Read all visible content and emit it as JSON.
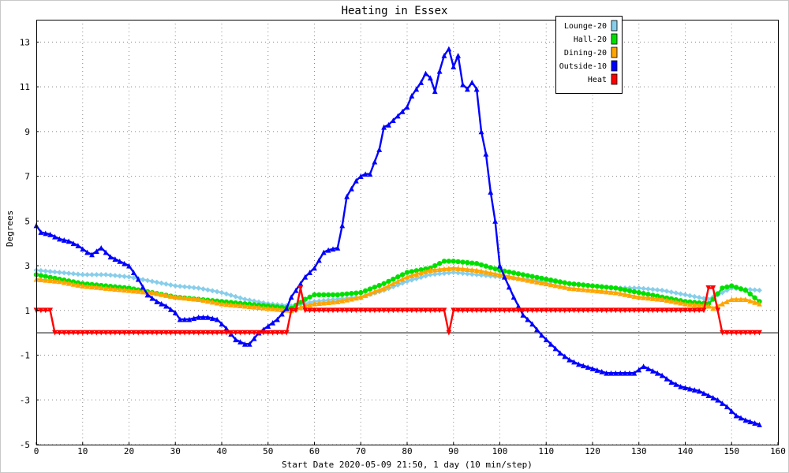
{
  "chart_data": {
    "type": "line",
    "title": "Heating in Essex",
    "xlabel": "Start Date 2020-05-09 21:50, 1 day (10 min/step)",
    "ylabel": "Degrees",
    "xlim": [
      0,
      160
    ],
    "ylim": [
      -5,
      14
    ],
    "x_ticks": [
      0,
      10,
      20,
      30,
      40,
      50,
      60,
      70,
      80,
      90,
      100,
      110,
      120,
      130,
      140,
      150,
      160
    ],
    "y_ticks": [
      -5,
      -3,
      -1,
      1,
      3,
      5,
      7,
      9,
      11,
      13
    ],
    "grid": true,
    "legend_position": "top-right",
    "zero_line": true,
    "series": [
      {
        "name": "Lounge-20",
        "color": "#87ceeb",
        "marker": "diamond",
        "x": [
          0,
          5,
          10,
          15,
          20,
          25,
          30,
          35,
          40,
          45,
          50,
          55,
          58,
          60,
          65,
          70,
          75,
          80,
          85,
          90,
          95,
          100,
          105,
          110,
          115,
          120,
          125,
          130,
          135,
          140,
          145,
          148,
          150,
          156
        ],
        "y": [
          2.8,
          2.7,
          2.6,
          2.6,
          2.5,
          2.3,
          2.1,
          2.0,
          1.8,
          1.5,
          1.3,
          1.2,
          1.3,
          1.4,
          1.5,
          1.6,
          1.9,
          2.3,
          2.6,
          2.7,
          2.6,
          2.5,
          2.4,
          2.3,
          2.2,
          2.1,
          2.0,
          2.0,
          1.9,
          1.7,
          1.5,
          1.8,
          2.0,
          1.9
        ]
      },
      {
        "name": "Hall-20",
        "color": "#00e000",
        "marker": "circle",
        "x": [
          0,
          5,
          10,
          15,
          20,
          25,
          30,
          35,
          40,
          45,
          50,
          55,
          58,
          60,
          65,
          70,
          75,
          80,
          85,
          88,
          90,
          95,
          100,
          105,
          110,
          115,
          120,
          125,
          130,
          135,
          140,
          145,
          146,
          148,
          150,
          153,
          156
        ],
        "y": [
          2.6,
          2.4,
          2.2,
          2.1,
          2.0,
          1.8,
          1.6,
          1.5,
          1.4,
          1.3,
          1.2,
          1.1,
          1.5,
          1.7,
          1.7,
          1.8,
          2.2,
          2.7,
          2.9,
          3.2,
          3.2,
          3.1,
          2.8,
          2.6,
          2.4,
          2.2,
          2.1,
          2.0,
          1.8,
          1.6,
          1.4,
          1.3,
          1.5,
          2.0,
          2.1,
          1.9,
          1.4
        ]
      },
      {
        "name": "Dining-20",
        "color": "#ffa500",
        "marker": "triangle-up",
        "x": [
          0,
          5,
          10,
          15,
          20,
          25,
          30,
          35,
          40,
          45,
          50,
          55,
          58,
          60,
          65,
          70,
          75,
          80,
          85,
          90,
          95,
          100,
          105,
          110,
          115,
          120,
          125,
          130,
          135,
          140,
          145,
          146,
          148,
          150,
          153,
          156
        ],
        "y": [
          2.4,
          2.3,
          2.1,
          2.0,
          1.9,
          1.8,
          1.6,
          1.5,
          1.3,
          1.2,
          1.1,
          1.0,
          1.2,
          1.3,
          1.4,
          1.6,
          2.0,
          2.5,
          2.8,
          2.9,
          2.8,
          2.6,
          2.4,
          2.2,
          2.0,
          1.9,
          1.8,
          1.6,
          1.5,
          1.3,
          1.2,
          1.1,
          1.3,
          1.5,
          1.5,
          1.3
        ]
      },
      {
        "name": "Outside-10",
        "color": "#0000ff",
        "marker": "triangle-up",
        "x": [
          0,
          1,
          3,
          5,
          7,
          9,
          11,
          12,
          14,
          16,
          18,
          20,
          22,
          24,
          26,
          28,
          30,
          31,
          33,
          35,
          37,
          39,
          41,
          43,
          45,
          46,
          48,
          50,
          52,
          54,
          55,
          57,
          58,
          60,
          62,
          63,
          65,
          66,
          67,
          69,
          70,
          71,
          72,
          74,
          75,
          76,
          78,
          80,
          81,
          82,
          83,
          84,
          85,
          86,
          87,
          88,
          89,
          90,
          91,
          92,
          93,
          94,
          95,
          96,
          97,
          98,
          99,
          100,
          101,
          103,
          105,
          107,
          109,
          111,
          113,
          115,
          117,
          120,
          123,
          126,
          129,
          131,
          133,
          135,
          137,
          139,
          141,
          143,
          145,
          147,
          149,
          151,
          153,
          156
        ],
        "y": [
          4.8,
          4.5,
          4.4,
          4.2,
          4.1,
          3.9,
          3.6,
          3.5,
          3.8,
          3.4,
          3.2,
          3.0,
          2.4,
          1.7,
          1.4,
          1.2,
          0.9,
          0.6,
          0.6,
          0.7,
          0.7,
          0.6,
          0.2,
          -0.3,
          -0.5,
          -0.5,
          0.0,
          0.3,
          0.6,
          1.1,
          1.6,
          2.2,
          2.5,
          2.9,
          3.6,
          3.7,
          3.8,
          4.8,
          6.1,
          6.8,
          7.0,
          7.1,
          7.1,
          8.2,
          9.2,
          9.3,
          9.7,
          10.1,
          10.6,
          10.9,
          11.2,
          11.6,
          11.4,
          10.8,
          11.7,
          12.4,
          12.7,
          11.9,
          12.4,
          11.1,
          10.9,
          11.2,
          10.9,
          9.0,
          8.0,
          6.3,
          5.0,
          3.0,
          2.5,
          1.6,
          0.8,
          0.4,
          -0.1,
          -0.5,
          -0.9,
          -1.2,
          -1.4,
          -1.6,
          -1.8,
          -1.8,
          -1.8,
          -1.5,
          -1.7,
          -1.9,
          -2.2,
          -2.4,
          -2.5,
          -2.6,
          -2.8,
          -3.0,
          -3.3,
          -3.7,
          -3.9,
          -4.1
        ]
      },
      {
        "name": "Heat",
        "color": "#ff0000",
        "marker": "triangle-down",
        "x": [
          0,
          3,
          4,
          10,
          20,
          30,
          40,
          50,
          54,
          55,
          56,
          57,
          58,
          60,
          70,
          80,
          88,
          89,
          90,
          100,
          110,
          120,
          130,
          140,
          144,
          145,
          146,
          147,
          148,
          150,
          156
        ],
        "y": [
          1,
          1,
          0,
          0,
          0,
          0,
          0,
          0,
          0,
          1,
          1,
          2,
          1,
          1,
          1,
          1,
          1,
          0,
          1,
          1,
          1,
          1,
          1,
          1,
          1,
          2,
          2,
          1,
          0,
          0,
          0
        ]
      }
    ]
  }
}
